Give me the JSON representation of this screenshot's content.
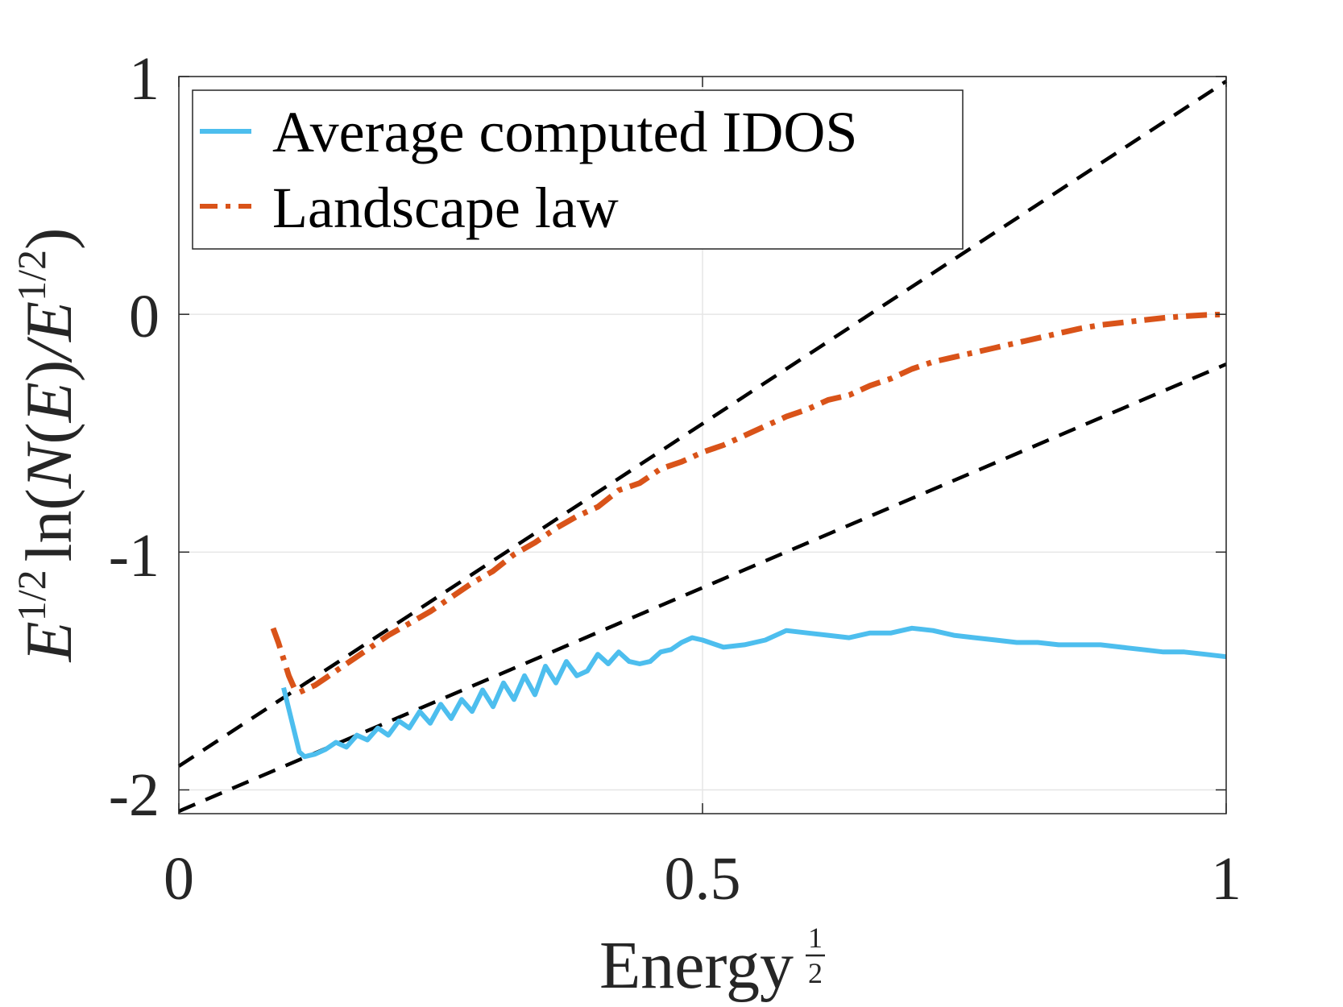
{
  "chart_data": {
    "type": "line",
    "title": "",
    "xlabel": "Energy",
    "xlabel_exponent": "1/2",
    "xlabel_exponent_parts": {
      "numerator": "1",
      "denominator": "2"
    },
    "ylabel": "E^{1/2} ln(N(E)/E^{1/2})",
    "ylabel_parts": {
      "E1": "E",
      "exp1": "1/2",
      "ln": "ln",
      "open": "(",
      "N": "N",
      "open2": "(",
      "E2": "E",
      "close2": ")",
      "slash": "/",
      "E3": "E",
      "exp2": "1/2",
      "close": ")"
    },
    "xlim": [
      0,
      1
    ],
    "ylim": [
      -2.1,
      1
    ],
    "xticks": [
      0,
      0.5,
      1
    ],
    "xtick_labels": [
      "0",
      "0.5",
      "1"
    ],
    "yticks": [
      -2,
      -1,
      0,
      1
    ],
    "ytick_labels": [
      "-2",
      "-1",
      "0",
      "1"
    ],
    "grid": true,
    "legend_position": "top-left",
    "series": [
      {
        "name": "Average computed IDOS",
        "style": "solid",
        "color": "#4DBEEE",
        "x": [
          0.1,
          0.115,
          0.12,
          0.13,
          0.14,
          0.15,
          0.16,
          0.17,
          0.18,
          0.19,
          0.2,
          0.21,
          0.22,
          0.23,
          0.24,
          0.25,
          0.26,
          0.27,
          0.28,
          0.29,
          0.3,
          0.31,
          0.32,
          0.33,
          0.34,
          0.35,
          0.36,
          0.37,
          0.38,
          0.39,
          0.4,
          0.41,
          0.42,
          0.43,
          0.44,
          0.45,
          0.46,
          0.47,
          0.48,
          0.49,
          0.5,
          0.52,
          0.54,
          0.56,
          0.58,
          0.6,
          0.62,
          0.64,
          0.66,
          0.68,
          0.7,
          0.72,
          0.74,
          0.76,
          0.78,
          0.8,
          0.82,
          0.84,
          0.86,
          0.88,
          0.9,
          0.92,
          0.94,
          0.96,
          0.98,
          1.0
        ],
        "y": [
          -1.57,
          -1.84,
          -1.86,
          -1.85,
          -1.83,
          -1.8,
          -1.82,
          -1.77,
          -1.79,
          -1.74,
          -1.77,
          -1.71,
          -1.74,
          -1.67,
          -1.72,
          -1.64,
          -1.7,
          -1.62,
          -1.67,
          -1.58,
          -1.65,
          -1.55,
          -1.62,
          -1.52,
          -1.6,
          -1.48,
          -1.55,
          -1.46,
          -1.52,
          -1.5,
          -1.43,
          -1.47,
          -1.42,
          -1.46,
          -1.47,
          -1.46,
          -1.42,
          -1.41,
          -1.38,
          -1.36,
          -1.37,
          -1.4,
          -1.39,
          -1.37,
          -1.33,
          -1.34,
          -1.35,
          -1.36,
          -1.34,
          -1.34,
          -1.32,
          -1.33,
          -1.35,
          -1.36,
          -1.37,
          -1.38,
          -1.38,
          -1.39,
          -1.39,
          -1.39,
          -1.4,
          -1.41,
          -1.42,
          -1.42,
          -1.43,
          -1.44
        ]
      },
      {
        "name": "Landscape law",
        "style": "dash-dot",
        "color": "#D95319",
        "x": [
          0.09,
          0.095,
          0.1,
          0.105,
          0.11,
          0.115,
          0.12,
          0.13,
          0.14,
          0.15,
          0.16,
          0.17,
          0.18,
          0.19,
          0.2,
          0.22,
          0.24,
          0.26,
          0.28,
          0.3,
          0.32,
          0.34,
          0.36,
          0.38,
          0.4,
          0.42,
          0.44,
          0.46,
          0.48,
          0.5,
          0.52,
          0.54,
          0.56,
          0.58,
          0.6,
          0.62,
          0.64,
          0.66,
          0.68,
          0.7,
          0.72,
          0.74,
          0.76,
          0.78,
          0.8,
          0.82,
          0.84,
          0.86,
          0.88,
          0.9,
          0.92,
          0.94,
          0.96,
          0.98,
          1.0
        ],
        "y": [
          -1.32,
          -1.38,
          -1.45,
          -1.52,
          -1.57,
          -1.59,
          -1.58,
          -1.56,
          -1.53,
          -1.5,
          -1.47,
          -1.44,
          -1.41,
          -1.38,
          -1.35,
          -1.3,
          -1.25,
          -1.19,
          -1.13,
          -1.08,
          -1.01,
          -0.96,
          -0.9,
          -0.85,
          -0.81,
          -0.74,
          -0.71,
          -0.65,
          -0.62,
          -0.58,
          -0.55,
          -0.51,
          -0.47,
          -0.43,
          -0.4,
          -0.36,
          -0.34,
          -0.3,
          -0.27,
          -0.23,
          -0.2,
          -0.18,
          -0.16,
          -0.14,
          -0.12,
          -0.1,
          -0.08,
          -0.06,
          -0.045,
          -0.035,
          -0.025,
          -0.015,
          -0.008,
          -0.003,
          0.0
        ]
      },
      {
        "name": "reference line (upper)",
        "style": "dashed",
        "color": "#000000",
        "legend": false,
        "x": [
          0,
          1
        ],
        "y": [
          -1.9,
          0.98
        ]
      },
      {
        "name": "reference line (lower)",
        "style": "dashed",
        "color": "#000000",
        "legend": false,
        "x": [
          0,
          1
        ],
        "y": [
          -2.09,
          -0.21
        ]
      }
    ]
  }
}
